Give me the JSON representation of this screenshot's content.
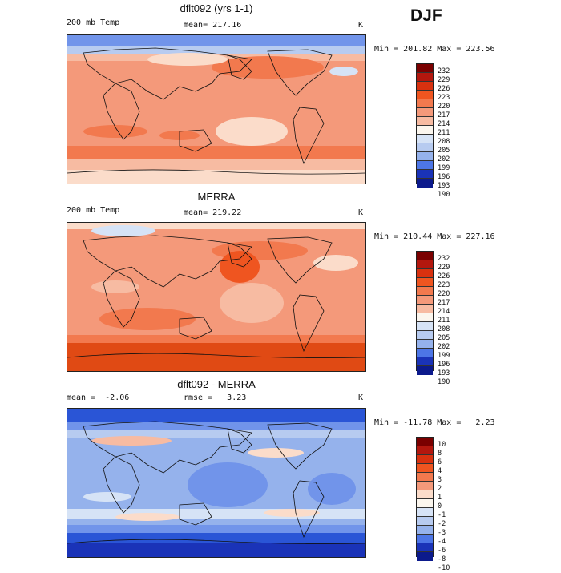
{
  "season": "DJF",
  "panels": [
    {
      "title": "dflt092 (yrs 1-1)",
      "left_label": "200 mb Temp",
      "center_label": "mean= 217.16",
      "units": "K",
      "minmax": "Min = 201.82 Max = 223.56",
      "colorbar_labels": [
        "232",
        "229",
        "226",
        "223",
        "220",
        "217",
        "214",
        "211",
        "208",
        "205",
        "202",
        "199",
        "196",
        "193",
        "190"
      ]
    },
    {
      "title": "MERRA",
      "left_label": "200 mb Temp",
      "center_label": "mean= 219.22",
      "units": "K",
      "minmax": "Min = 210.44 Max = 227.16",
      "colorbar_labels": [
        "232",
        "229",
        "226",
        "223",
        "220",
        "217",
        "214",
        "211",
        "208",
        "205",
        "202",
        "199",
        "196",
        "193",
        "190"
      ]
    },
    {
      "title": "dflt092 - MERRA",
      "left_label": "mean =  -2.06",
      "center_label": "rmse =   3.23",
      "units": "K",
      "minmax": "Min = -11.78 Max =   2.23",
      "colorbar_labels": [
        "10",
        "8",
        "6",
        "4",
        "3",
        "2",
        "1",
        "0",
        "-1",
        "-2",
        "-3",
        "-4",
        "-6",
        "-8",
        "-10"
      ]
    }
  ],
  "colors": {
    "temp_scale": [
      "#7a0000",
      "#b3170e",
      "#d8310f",
      "#ef5520",
      "#f2794e",
      "#f4997a",
      "#f7bba2",
      "#fbdcca",
      "#fbf6ee",
      "#d6e3f6",
      "#b7cbf0",
      "#95b2ec",
      "#7194ea",
      "#4d76e6",
      "#2a55d6",
      "#1a33b8",
      "#0c1a8c"
    ],
    "diff_scale": [
      "#7a0000",
      "#b3170e",
      "#d8310f",
      "#ef5520",
      "#f2794e",
      "#f4997a",
      "#f7bba2",
      "#fbdcca",
      "#fbf6ee",
      "#d6e3f6",
      "#b7cbf0",
      "#95b2ec",
      "#7194ea",
      "#4d76e6",
      "#2a55d6",
      "#1a33b8",
      "#0c1a8c"
    ]
  }
}
